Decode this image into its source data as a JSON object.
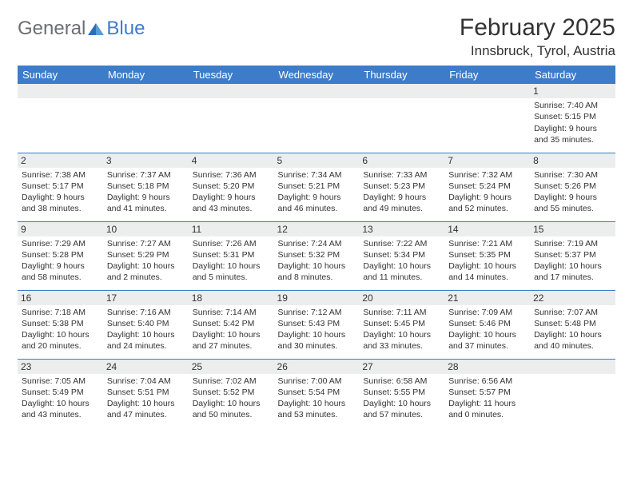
{
  "logo": {
    "text1": "General",
    "text2": "Blue"
  },
  "title": "February 2025",
  "location": "Innsbruck, Tyrol, Austria",
  "colors": {
    "header_bg": "#3d7cc9",
    "header_text": "#ffffff",
    "daynum_bg": "#eceded",
    "border": "#3d7cc9",
    "body_text": "#333333",
    "logo_gray": "#6d6e71",
    "logo_blue": "#3d7cc9",
    "background": "#ffffff"
  },
  "typography": {
    "title_fontsize": 30,
    "location_fontsize": 17,
    "dayheader_fontsize": 13,
    "cell_fontsize": 10.5,
    "logo_fontsize": 24
  },
  "dayHeaders": [
    "Sunday",
    "Monday",
    "Tuesday",
    "Wednesday",
    "Thursday",
    "Friday",
    "Saturday"
  ],
  "weeks": [
    [
      null,
      null,
      null,
      null,
      null,
      null,
      {
        "day": "1",
        "sunrise": "Sunrise: 7:40 AM",
        "sunset": "Sunset: 5:15 PM",
        "daylight": "Daylight: 9 hours and 35 minutes."
      }
    ],
    [
      {
        "day": "2",
        "sunrise": "Sunrise: 7:38 AM",
        "sunset": "Sunset: 5:17 PM",
        "daylight": "Daylight: 9 hours and 38 minutes."
      },
      {
        "day": "3",
        "sunrise": "Sunrise: 7:37 AM",
        "sunset": "Sunset: 5:18 PM",
        "daylight": "Daylight: 9 hours and 41 minutes."
      },
      {
        "day": "4",
        "sunrise": "Sunrise: 7:36 AM",
        "sunset": "Sunset: 5:20 PM",
        "daylight": "Daylight: 9 hours and 43 minutes."
      },
      {
        "day": "5",
        "sunrise": "Sunrise: 7:34 AM",
        "sunset": "Sunset: 5:21 PM",
        "daylight": "Daylight: 9 hours and 46 minutes."
      },
      {
        "day": "6",
        "sunrise": "Sunrise: 7:33 AM",
        "sunset": "Sunset: 5:23 PM",
        "daylight": "Daylight: 9 hours and 49 minutes."
      },
      {
        "day": "7",
        "sunrise": "Sunrise: 7:32 AM",
        "sunset": "Sunset: 5:24 PM",
        "daylight": "Daylight: 9 hours and 52 minutes."
      },
      {
        "day": "8",
        "sunrise": "Sunrise: 7:30 AM",
        "sunset": "Sunset: 5:26 PM",
        "daylight": "Daylight: 9 hours and 55 minutes."
      }
    ],
    [
      {
        "day": "9",
        "sunrise": "Sunrise: 7:29 AM",
        "sunset": "Sunset: 5:28 PM",
        "daylight": "Daylight: 9 hours and 58 minutes."
      },
      {
        "day": "10",
        "sunrise": "Sunrise: 7:27 AM",
        "sunset": "Sunset: 5:29 PM",
        "daylight": "Daylight: 10 hours and 2 minutes."
      },
      {
        "day": "11",
        "sunrise": "Sunrise: 7:26 AM",
        "sunset": "Sunset: 5:31 PM",
        "daylight": "Daylight: 10 hours and 5 minutes."
      },
      {
        "day": "12",
        "sunrise": "Sunrise: 7:24 AM",
        "sunset": "Sunset: 5:32 PM",
        "daylight": "Daylight: 10 hours and 8 minutes."
      },
      {
        "day": "13",
        "sunrise": "Sunrise: 7:22 AM",
        "sunset": "Sunset: 5:34 PM",
        "daylight": "Daylight: 10 hours and 11 minutes."
      },
      {
        "day": "14",
        "sunrise": "Sunrise: 7:21 AM",
        "sunset": "Sunset: 5:35 PM",
        "daylight": "Daylight: 10 hours and 14 minutes."
      },
      {
        "day": "15",
        "sunrise": "Sunrise: 7:19 AM",
        "sunset": "Sunset: 5:37 PM",
        "daylight": "Daylight: 10 hours and 17 minutes."
      }
    ],
    [
      {
        "day": "16",
        "sunrise": "Sunrise: 7:18 AM",
        "sunset": "Sunset: 5:38 PM",
        "daylight": "Daylight: 10 hours and 20 minutes."
      },
      {
        "day": "17",
        "sunrise": "Sunrise: 7:16 AM",
        "sunset": "Sunset: 5:40 PM",
        "daylight": "Daylight: 10 hours and 24 minutes."
      },
      {
        "day": "18",
        "sunrise": "Sunrise: 7:14 AM",
        "sunset": "Sunset: 5:42 PM",
        "daylight": "Daylight: 10 hours and 27 minutes."
      },
      {
        "day": "19",
        "sunrise": "Sunrise: 7:12 AM",
        "sunset": "Sunset: 5:43 PM",
        "daylight": "Daylight: 10 hours and 30 minutes."
      },
      {
        "day": "20",
        "sunrise": "Sunrise: 7:11 AM",
        "sunset": "Sunset: 5:45 PM",
        "daylight": "Daylight: 10 hours and 33 minutes."
      },
      {
        "day": "21",
        "sunrise": "Sunrise: 7:09 AM",
        "sunset": "Sunset: 5:46 PM",
        "daylight": "Daylight: 10 hours and 37 minutes."
      },
      {
        "day": "22",
        "sunrise": "Sunrise: 7:07 AM",
        "sunset": "Sunset: 5:48 PM",
        "daylight": "Daylight: 10 hours and 40 minutes."
      }
    ],
    [
      {
        "day": "23",
        "sunrise": "Sunrise: 7:05 AM",
        "sunset": "Sunset: 5:49 PM",
        "daylight": "Daylight: 10 hours and 43 minutes."
      },
      {
        "day": "24",
        "sunrise": "Sunrise: 7:04 AM",
        "sunset": "Sunset: 5:51 PM",
        "daylight": "Daylight: 10 hours and 47 minutes."
      },
      {
        "day": "25",
        "sunrise": "Sunrise: 7:02 AM",
        "sunset": "Sunset: 5:52 PM",
        "daylight": "Daylight: 10 hours and 50 minutes."
      },
      {
        "day": "26",
        "sunrise": "Sunrise: 7:00 AM",
        "sunset": "Sunset: 5:54 PM",
        "daylight": "Daylight: 10 hours and 53 minutes."
      },
      {
        "day": "27",
        "sunrise": "Sunrise: 6:58 AM",
        "sunset": "Sunset: 5:55 PM",
        "daylight": "Daylight: 10 hours and 57 minutes."
      },
      {
        "day": "28",
        "sunrise": "Sunrise: 6:56 AM",
        "sunset": "Sunset: 5:57 PM",
        "daylight": "Daylight: 11 hours and 0 minutes."
      },
      null
    ]
  ]
}
